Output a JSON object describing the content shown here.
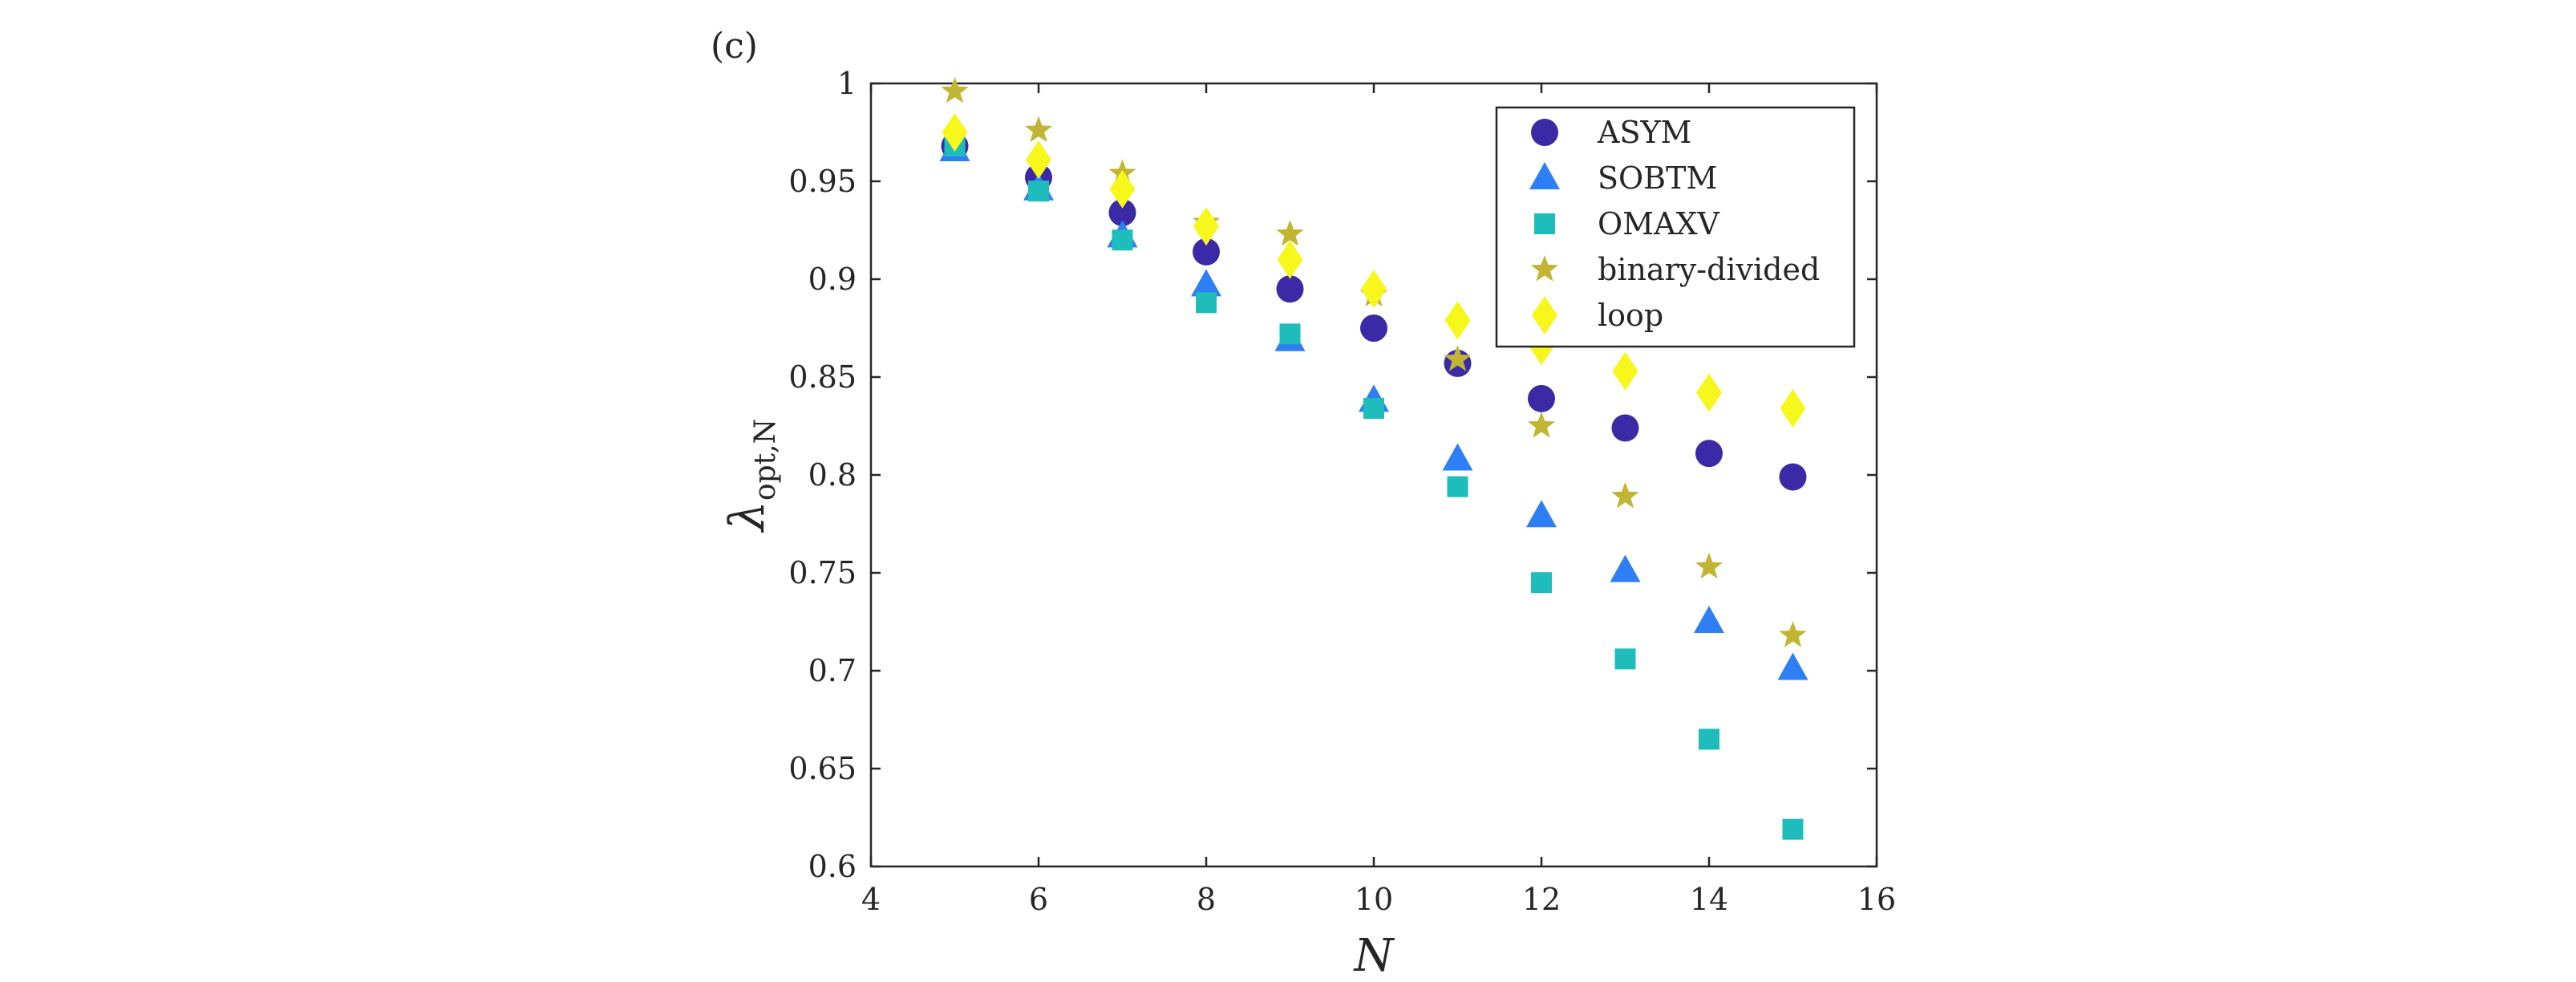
{
  "chart_data": {
    "type": "scatter",
    "panel_label": "(c)",
    "xlabel": "N",
    "ylabel_main": "λ",
    "ylabel_sub": "opt,N",
    "xlim": [
      4,
      16
    ],
    "ylim": [
      0.6,
      1.0
    ],
    "xticks": [
      4,
      6,
      8,
      10,
      12,
      14,
      16
    ],
    "yticks": [
      0.6,
      0.65,
      0.7,
      0.75,
      0.8,
      0.85,
      0.9,
      0.95,
      1.0
    ],
    "xtick_labels": [
      "4",
      "6",
      "8",
      "10",
      "12",
      "14",
      "16"
    ],
    "ytick_labels": [
      "0.6",
      "0.65",
      "0.7",
      "0.75",
      "0.8",
      "0.85",
      "0.9",
      "0.95",
      "1"
    ],
    "grid": false,
    "legend_position": "top-right",
    "x": [
      5,
      6,
      7,
      8,
      9,
      10,
      11,
      12,
      13,
      14,
      15
    ],
    "series": [
      {
        "name": "ASYM",
        "marker": "circle",
        "color": "#3a2aa6",
        "values": [
          0.968,
          0.952,
          0.934,
          0.914,
          0.895,
          0.875,
          0.857,
          0.839,
          0.824,
          0.811,
          0.799
        ]
      },
      {
        "name": "SOBTM",
        "marker": "triangle",
        "color": "#2e7ef5",
        "values": [
          0.966,
          0.946,
          0.922,
          0.897,
          0.869,
          0.838,
          0.808,
          0.779,
          0.751,
          0.725,
          0.701
        ]
      },
      {
        "name": "OMAXV",
        "marker": "square",
        "color": "#1fbcbc",
        "values": [
          0.968,
          0.945,
          0.92,
          0.888,
          0.872,
          0.834,
          0.794,
          0.745,
          0.706,
          0.665,
          0.619
        ]
      },
      {
        "name": "binary-divided",
        "marker": "star",
        "color": "#c2b533",
        "values": [
          0.996,
          0.976,
          0.954,
          0.929,
          0.923,
          0.892,
          0.859,
          0.825,
          0.789,
          0.753,
          0.718
        ]
      },
      {
        "name": "loop",
        "marker": "diamond",
        "color": "#f7f71c",
        "values": [
          0.975,
          0.961,
          0.946,
          0.927,
          0.91,
          0.895,
          0.879,
          0.866,
          0.853,
          0.842,
          0.834
        ]
      }
    ]
  }
}
